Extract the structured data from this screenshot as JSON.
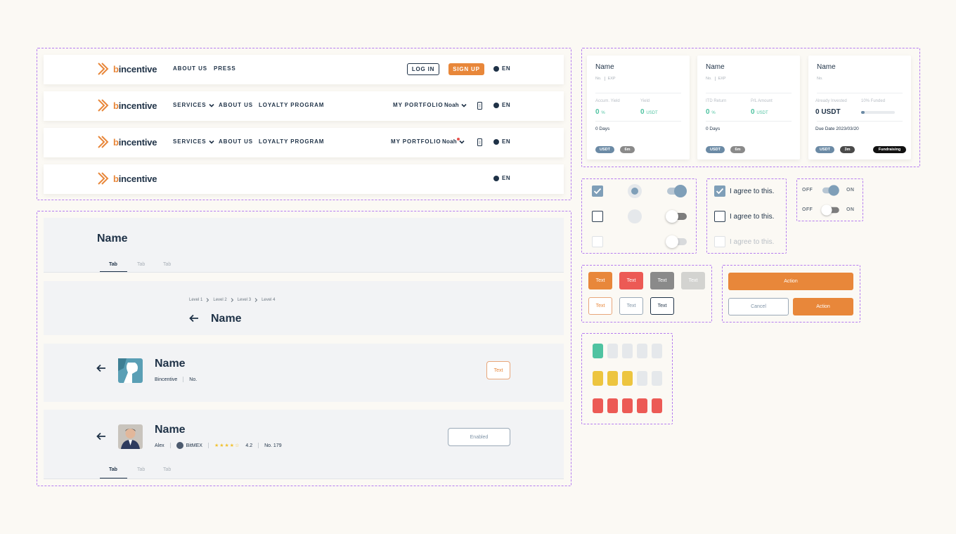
{
  "brand": {
    "name_prefix": "b",
    "name_rest": "incentive",
    "orange": "#e8873a",
    "navy": "#1f3247"
  },
  "nav1": {
    "links": [
      "ABOUT US",
      "PRESS"
    ],
    "login": "LOG IN",
    "signup": "SIGN UP",
    "lang": "EN"
  },
  "nav2": {
    "services": "SERVICES",
    "about": "ABOUT US",
    "loyalty": "LOYALTY PROGRAM",
    "portfolio": "MY PORTFOLIO",
    "user": "Noah",
    "lang": "EN"
  },
  "nav3": {
    "services": "SERVICES",
    "about": "ABOUT US",
    "loyalty": "LOYALTY PROGRAM",
    "portfolio": "MY PORTFOLIO",
    "user": "Noah",
    "lang": "EN"
  },
  "nav4": {
    "lang": "EN"
  },
  "header1": {
    "title": "Name",
    "tabs": [
      "Tab",
      "Tab",
      "Tab"
    ]
  },
  "header2": {
    "crumbs": [
      "Level 1",
      "Level 2",
      "Level 3",
      "Level 4"
    ],
    "title": "Name"
  },
  "header3": {
    "title": "Name",
    "org": "Bincentive",
    "no": "No.",
    "button": "Text"
  },
  "header4": {
    "title": "Name",
    "user": "Alex",
    "exchange": "BitMEX",
    "stars": "★★★★☆",
    "rating": "4.2",
    "no": "No. 179",
    "button": "Enabled",
    "tabs": [
      "Tab",
      "Tab",
      "Tab"
    ]
  },
  "cards": [
    {
      "name": "Name",
      "no": "No.",
      "exp": "EXP",
      "l1": "Accum. Yield",
      "l2": "Yield",
      "v1": "0",
      "u1": "%",
      "v2": "0",
      "u2": "USDT",
      "days": "0 Days",
      "tags": [
        "USDT",
        "6m"
      ]
    },
    {
      "name": "Name",
      "no": "No.",
      "exp": "EXP",
      "l1": "ITD Return",
      "l2": "P/L Amount",
      "v1": "0",
      "u1": "%",
      "v2": "0",
      "u2": "USDT",
      "days": "0 Days",
      "tags": [
        "USDT",
        "6m"
      ]
    },
    {
      "name": "Name",
      "no": "No.",
      "l1": "Already Invested",
      "l2": "10% Funded",
      "v1": "0 USDT",
      "funded": 0.1,
      "due": "Due Date 2023/03/20",
      "tags": [
        "USDT",
        "3m"
      ],
      "status": "Fundraising"
    }
  ],
  "agree": {
    "label": "I agree to this."
  },
  "switches": {
    "off": "OFF",
    "on": "ON"
  },
  "small_buttons": {
    "label": "Text"
  },
  "big_buttons": {
    "action": "Action",
    "cancel": "Cancel"
  },
  "colors": {
    "teal": "#4fc3a1",
    "yellow": "#edc53f",
    "red": "#ec5a55",
    "grey": "#e5e8eb"
  }
}
